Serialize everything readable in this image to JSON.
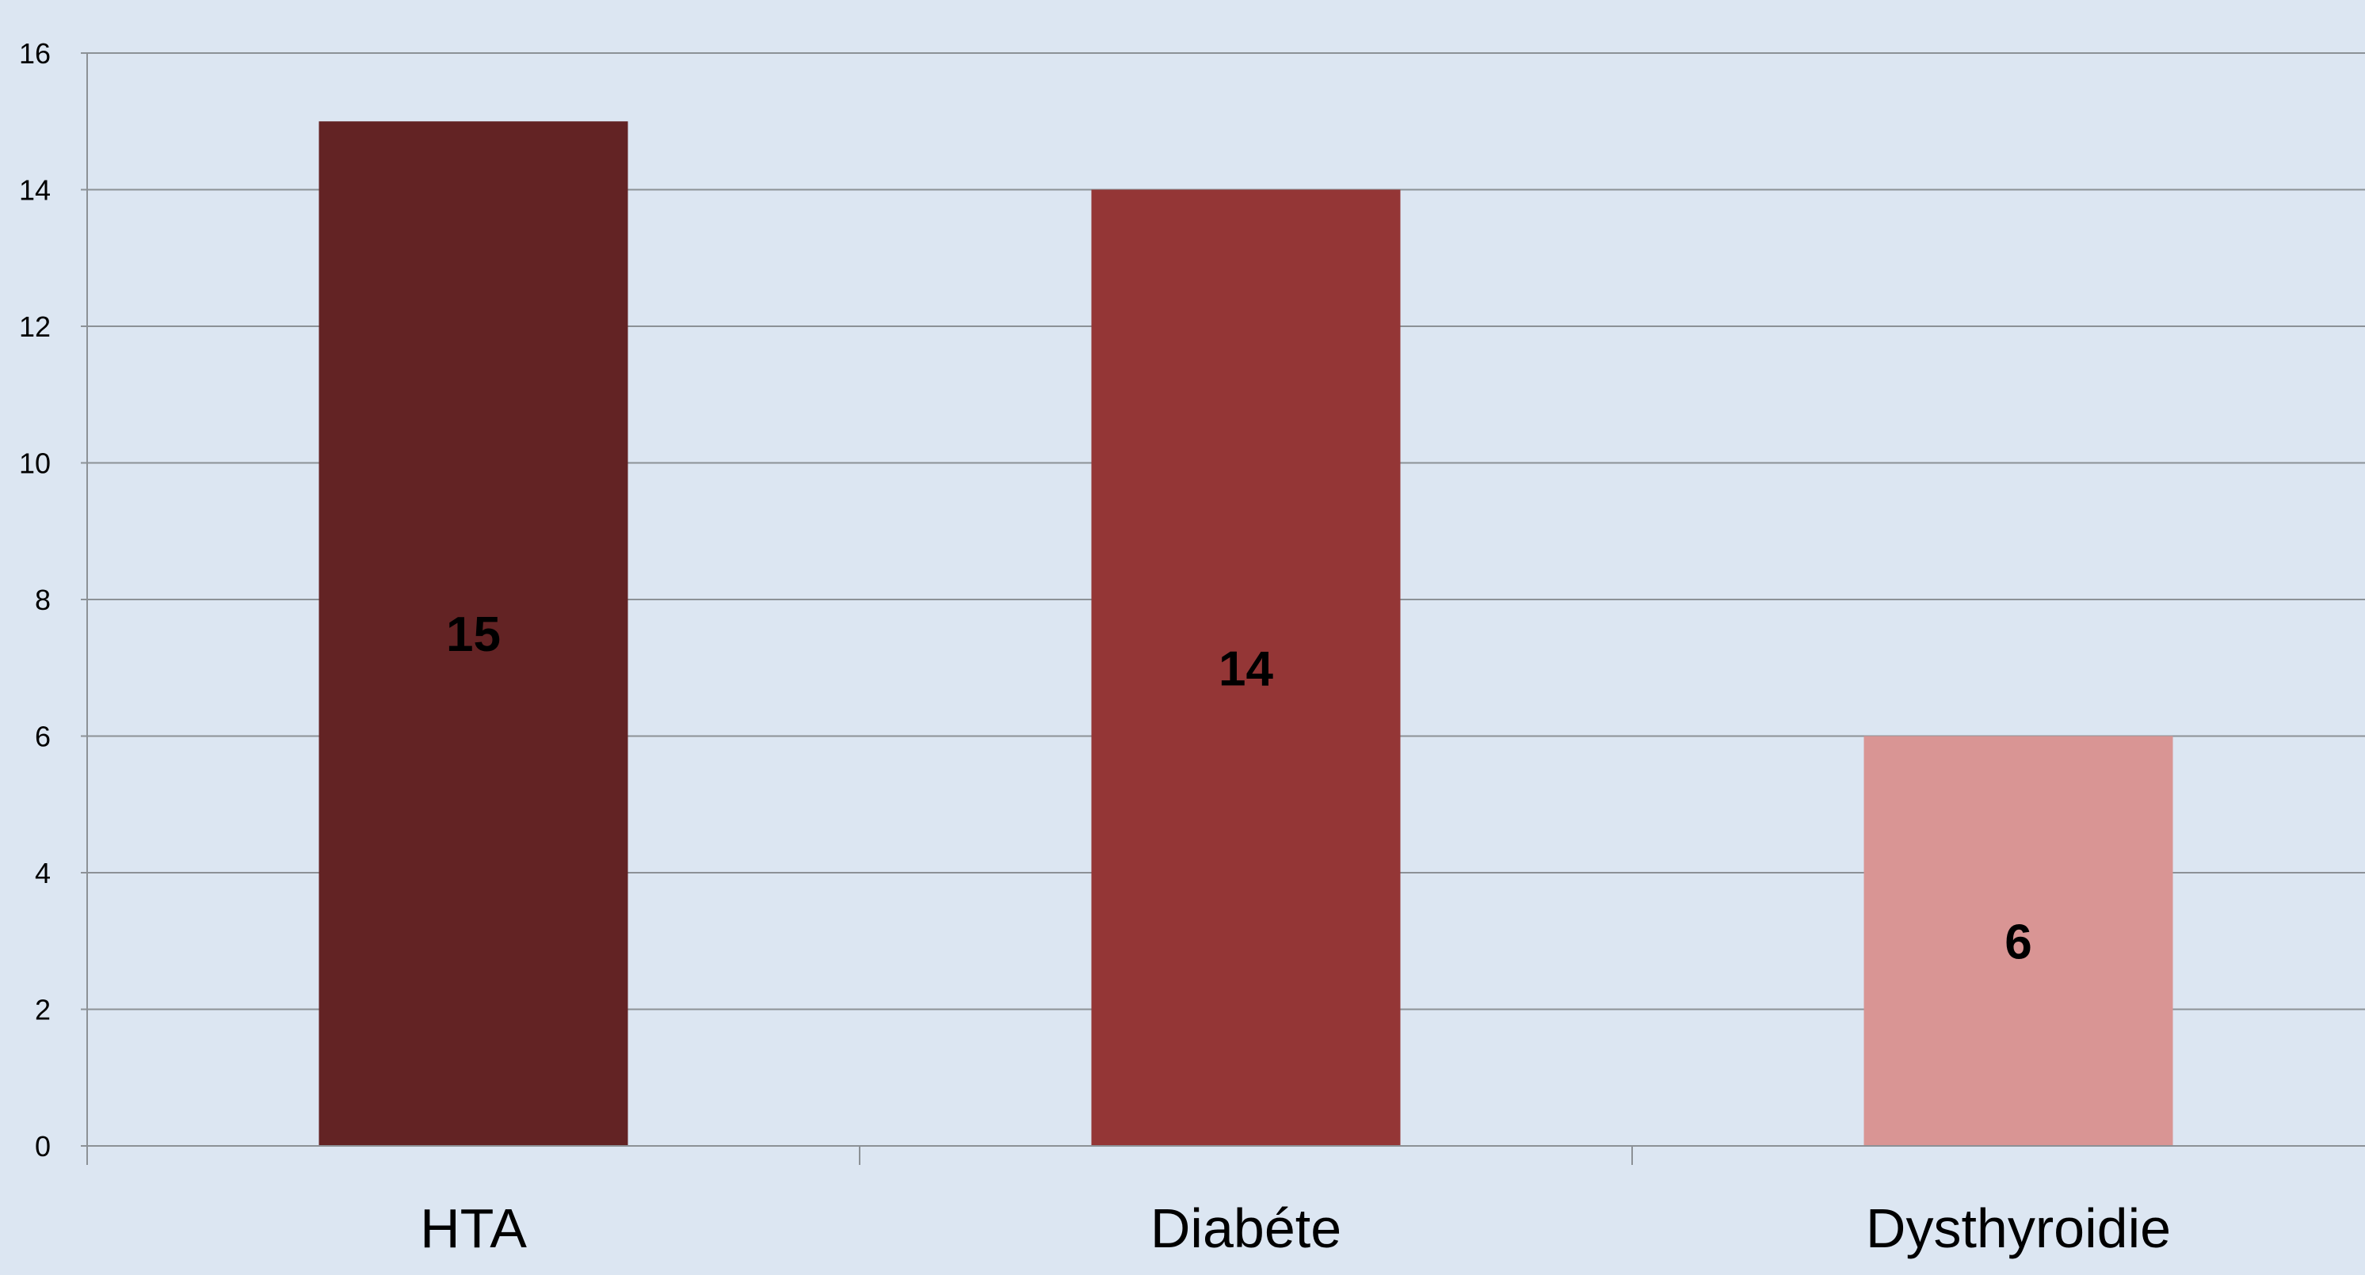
{
  "chart_data": {
    "type": "bar",
    "categories": [
      "HTA",
      "Diabéte",
      "Dysthyroidie"
    ],
    "values": [
      15,
      14,
      6
    ],
    "data_labels": [
      "15",
      "14",
      "6"
    ],
    "colors": [
      "#632324",
      "#943636",
      "#d99594"
    ],
    "ylim": [
      0,
      16
    ],
    "yticks": [
      0,
      2,
      4,
      6,
      8,
      10,
      12,
      14,
      16
    ],
    "title": "",
    "xlabel": "",
    "ylabel": "",
    "grid": true,
    "legend": "none",
    "background": "#dce6f2"
  }
}
